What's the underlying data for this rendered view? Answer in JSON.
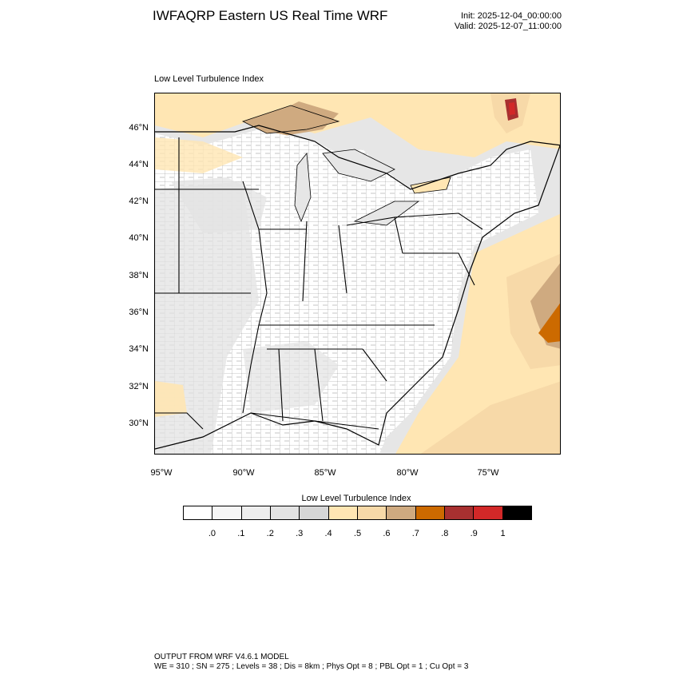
{
  "header": {
    "title": "IWFAQRP Eastern US Real Time WRF",
    "init": "Init: 2025-12-04_00:00:00",
    "valid": "Valid: 2025-12-07_11:00:00"
  },
  "map": {
    "subtitle": "Low Level Turbulence Index",
    "lat_labels": [
      "46°N",
      "44°N",
      "42°N",
      "40°N",
      "38°N",
      "36°N",
      "34°N",
      "32°N",
      "30°N"
    ],
    "lon_labels": [
      "95°W",
      "90°W",
      "85°W",
      "80°W",
      "75°W"
    ],
    "fill_colors": {
      "land_base": "#ffffff",
      "gray_light": "#e6e6e6",
      "gray_mid": "#d6d6d6",
      "tan_light": "#ffe6b3",
      "tan_mid": "#f7d9a8",
      "tan_dark": "#cfaa80",
      "orange": "#cc6a00",
      "red_dark": "#a83030",
      "red": "#d22828"
    }
  },
  "colorbar": {
    "title": "Low Level Turbulence Index",
    "colors": [
      "#ffffff",
      "#f6f6f6",
      "#eeeeee",
      "#e3e3e3",
      "#d6d6d6",
      "#ffe6b3",
      "#f7d9a8",
      "#cfaa80",
      "#cc6a00",
      "#a83030",
      "#d22828",
      "#000000"
    ],
    "labels": [
      ".0",
      ".1",
      ".2",
      ".3",
      ".4",
      ".5",
      ".6",
      ".7",
      ".8",
      ".9",
      "1"
    ]
  },
  "footer": {
    "line1": "OUTPUT FROM WRF V4.6.1 MODEL",
    "line2": "WE = 310 ; SN = 275 ; Levels = 38 ; Dis = 8km ; Phys Opt = 8 ; PBL Opt = 1 ; Cu Opt = 3"
  }
}
